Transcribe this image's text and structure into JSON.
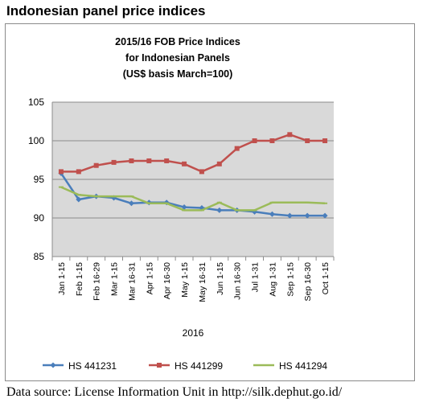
{
  "page": {
    "heading": "Indonesian panel price indices",
    "source_note": "Data source: License Information Unit in http://silk.dephut.go.id/"
  },
  "chart_data": {
    "type": "line",
    "title_lines": [
      "2015/16 FOB Price Indices",
      "for Indonesian Panels",
      "(US$ basis March=100)"
    ],
    "xlabel": "2016",
    "ylabel": "",
    "categories": [
      "Jan 1-15",
      "Feb 1-15",
      "Feb 16-29",
      "Mar 1-15",
      "Mar 16-31",
      "Apr 1-15",
      "Apr 16-30",
      "May 1-15",
      "May 16-31",
      "Jun 1-15",
      "Jun 16-30",
      "Jul 1-31",
      "Aug 1-31",
      "Sep 1-15",
      "Sep 16-30",
      "Oct 1-15"
    ],
    "ylim": [
      85,
      105
    ],
    "yticks": [
      85,
      90,
      95,
      100,
      105
    ],
    "grid": true,
    "plot_background": "#d9d9d9",
    "legend_position": "bottom",
    "series": [
      {
        "name": "HS 441231",
        "color": "#4a7ebb",
        "values": [
          95.8,
          92.4,
          92.8,
          92.6,
          91.9,
          92.0,
          92.0,
          91.4,
          91.3,
          91.0,
          91.0,
          90.8,
          90.5,
          90.3,
          90.3,
          90.3
        ]
      },
      {
        "name": "HS 441299",
        "color": "#c0504d",
        "values": [
          96.0,
          96.0,
          96.8,
          97.2,
          97.4,
          97.4,
          97.4,
          97.0,
          96.0,
          97.0,
          99.0,
          100.0,
          100.0,
          100.8,
          100.0,
          100.0
        ]
      },
      {
        "name": "HS 441294",
        "color": "#9bbb59",
        "values": [
          94.0,
          93.0,
          92.8,
          92.8,
          92.8,
          91.9,
          91.9,
          91.0,
          91.0,
          92.0,
          91.0,
          91.0,
          92.0,
          92.0,
          92.0,
          91.9
        ]
      }
    ]
  }
}
